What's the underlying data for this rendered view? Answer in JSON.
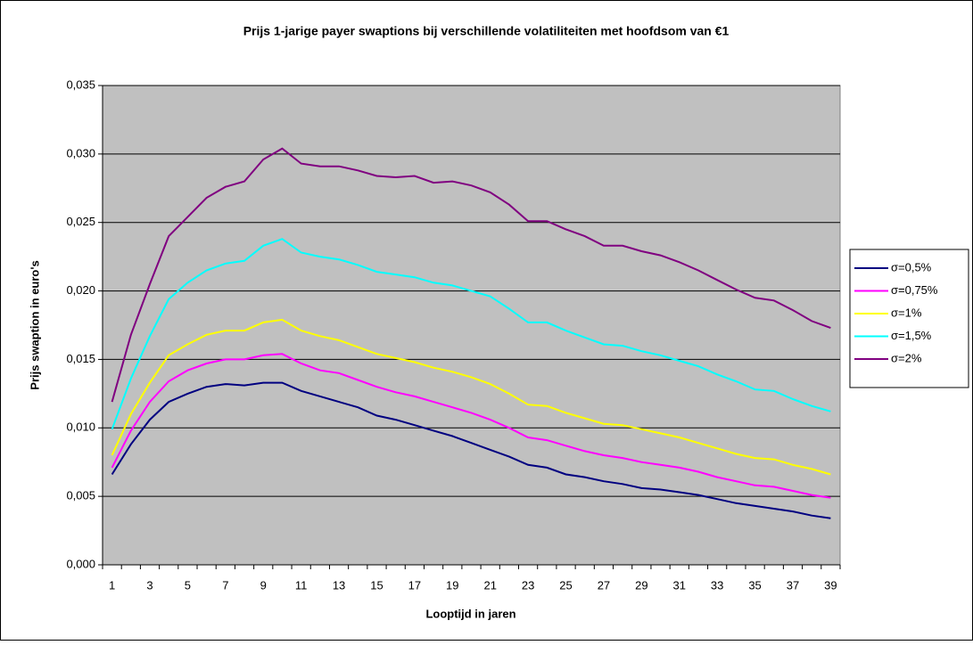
{
  "chart_data": {
    "type": "line",
    "title": "Prijs 1-jarige payer swaptions bij verschillende volatiliteiten met hoofdsom van €1",
    "x_label": "Looptijd in jaren",
    "y_label": "Prijs swaption in euro's",
    "categories": [
      "1",
      null,
      "3",
      null,
      "5",
      null,
      "7",
      null,
      "9",
      null,
      "11",
      null,
      "13",
      null,
      "15",
      null,
      "17",
      null,
      "19",
      null,
      "21",
      null,
      "23",
      null,
      "25",
      null,
      "27",
      null,
      "29",
      null,
      "31",
      null,
      "33",
      null,
      "35",
      null,
      "37",
      null,
      "39"
    ],
    "ylim": [
      0,
      0.035
    ],
    "yticks": [
      {
        "value": 0,
        "label": "0,000"
      },
      {
        "value": 0.005,
        "label": "0,005"
      },
      {
        "value": 0.01,
        "label": "0,010"
      },
      {
        "value": 0.015,
        "label": "0,015"
      },
      {
        "value": 0.02,
        "label": "0,020"
      },
      {
        "value": 0.025,
        "label": "0,025"
      },
      {
        "value": 0.03,
        "label": "0,030"
      },
      {
        "value": 0.035,
        "label": "0,035"
      }
    ],
    "grid": true,
    "legend": "right",
    "series": [
      {
        "name": "σ=0,5%",
        "color": "#000080",
        "values": [
          0.0066,
          0.0088,
          0.0106,
          0.0119,
          0.0125,
          0.013,
          0.0132,
          0.0131,
          0.0133,
          0.0133,
          0.0127,
          0.0123,
          0.0119,
          0.0115,
          0.0109,
          0.0106,
          0.0102,
          0.0098,
          0.0094,
          0.0089,
          0.0084,
          0.0079,
          0.0073,
          0.0071,
          0.0066,
          0.0064,
          0.0061,
          0.0059,
          0.0056,
          0.0055,
          0.0053,
          0.0051,
          0.0048,
          0.0045,
          0.0043,
          0.0041,
          0.0039,
          0.0036,
          0.0034
        ]
      },
      {
        "name": "σ=0,75%",
        "color": "#ff00ff",
        "values": [
          0.0071,
          0.0098,
          0.0119,
          0.0134,
          0.0142,
          0.0147,
          0.015,
          0.015,
          0.0153,
          0.0154,
          0.0147,
          0.0142,
          0.014,
          0.0135,
          0.013,
          0.0126,
          0.0123,
          0.0119,
          0.0115,
          0.0111,
          0.0106,
          0.01,
          0.0093,
          0.0091,
          0.0087,
          0.0083,
          0.008,
          0.0078,
          0.0075,
          0.0073,
          0.0071,
          0.0068,
          0.0064,
          0.0061,
          0.0058,
          0.0057,
          0.0054,
          0.0051,
          0.0049
        ]
      },
      {
        "name": "σ=1%",
        "color": "#ffff00",
        "values": [
          0.008,
          0.011,
          0.0133,
          0.0153,
          0.0161,
          0.0168,
          0.0171,
          0.0171,
          0.0177,
          0.0179,
          0.0171,
          0.0167,
          0.0164,
          0.0159,
          0.0154,
          0.0151,
          0.0148,
          0.0144,
          0.0141,
          0.0137,
          0.0132,
          0.0125,
          0.0117,
          0.0116,
          0.0111,
          0.0107,
          0.0103,
          0.0102,
          0.0099,
          0.0096,
          0.0093,
          0.0089,
          0.0085,
          0.0081,
          0.0078,
          0.0077,
          0.0073,
          0.007,
          0.0066
        ]
      },
      {
        "name": "σ=1,5%",
        "color": "#00ffff",
        "values": [
          0.0099,
          0.0136,
          0.0167,
          0.0194,
          0.0206,
          0.0215,
          0.022,
          0.0222,
          0.0233,
          0.0238,
          0.0228,
          0.0225,
          0.0223,
          0.0219,
          0.0214,
          0.0212,
          0.021,
          0.0206,
          0.0204,
          0.02,
          0.0196,
          0.0187,
          0.0177,
          0.0177,
          0.0171,
          0.0166,
          0.0161,
          0.016,
          0.0156,
          0.0153,
          0.0149,
          0.0145,
          0.0139,
          0.0134,
          0.0128,
          0.0127,
          0.0121,
          0.0116,
          0.0112
        ]
      },
      {
        "name": "σ=2%",
        "color": "#800080",
        "values": [
          0.0119,
          0.0168,
          0.0205,
          0.024,
          0.0254,
          0.0268,
          0.0276,
          0.028,
          0.0296,
          0.0304,
          0.0293,
          0.0291,
          0.0291,
          0.0288,
          0.0284,
          0.0283,
          0.0284,
          0.0279,
          0.028,
          0.0277,
          0.0272,
          0.0263,
          0.0251,
          0.0251,
          0.0245,
          0.024,
          0.0233,
          0.0233,
          0.0229,
          0.0226,
          0.0221,
          0.0215,
          0.0208,
          0.0201,
          0.0195,
          0.0193,
          0.0186,
          0.0178,
          0.0173
        ]
      }
    ]
  }
}
